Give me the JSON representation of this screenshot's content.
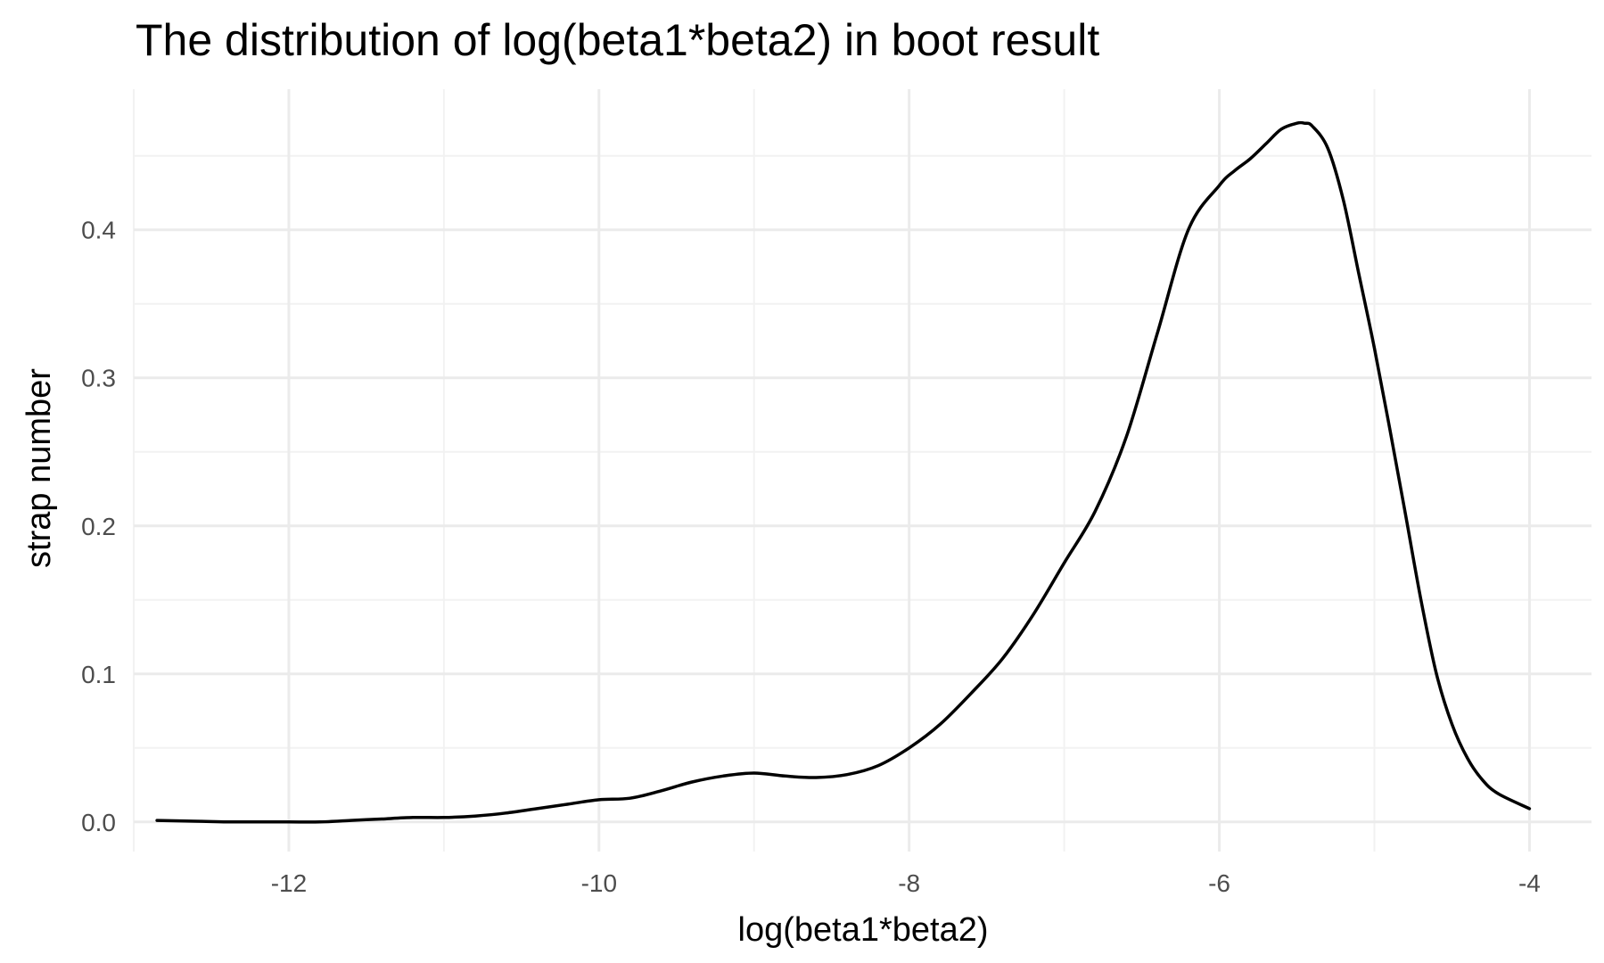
{
  "chart_data": {
    "type": "line",
    "title": "The distribution of log(beta1*beta2) in boot result",
    "xlabel": "log(beta1*beta2)",
    "ylabel": "strap number",
    "xlim": [
      -13.0,
      -3.6
    ],
    "ylim": [
      -0.02,
      0.495
    ],
    "x_ticks": [
      -12,
      -10,
      -8,
      -6,
      -4
    ],
    "x_tick_labels": [
      "-12",
      "-10",
      "-8",
      "-6",
      "-4"
    ],
    "y_ticks": [
      0.0,
      0.1,
      0.2,
      0.3,
      0.4
    ],
    "y_tick_labels": [
      "0.0",
      "0.1",
      "0.2",
      "0.3",
      "0.4"
    ],
    "x_minor_ticks": [
      -13,
      -11,
      -9,
      -7,
      -5
    ],
    "y_minor_ticks": [
      0.05,
      0.15,
      0.25,
      0.35,
      0.45
    ],
    "grid": true,
    "legend": "none",
    "line_color": "#000000",
    "series": [
      {
        "x": [
          -12.85,
          -12.6,
          -12.4,
          -12.2,
          -12.0,
          -11.8,
          -11.6,
          -11.4,
          -11.2,
          -11.0,
          -10.8,
          -10.6,
          -10.4,
          -10.2,
          -10.0,
          -9.8,
          -9.6,
          -9.4,
          -9.2,
          -9.0,
          -8.8,
          -8.6,
          -8.4,
          -8.2,
          -8.0,
          -7.8,
          -7.6,
          -7.4,
          -7.2,
          -7.0,
          -6.8,
          -6.6,
          -6.4,
          -6.2,
          -6.0,
          -5.9,
          -5.8,
          -5.7,
          -5.6,
          -5.5,
          -5.45,
          -5.4,
          -5.3,
          -5.2,
          -5.1,
          -5.0,
          -4.9,
          -4.8,
          -4.7,
          -4.6,
          -4.5,
          -4.4,
          -4.3,
          -4.2,
          -4.0
        ],
        "y": [
          0.001,
          0.0005,
          0.0,
          0.0,
          0.0,
          0.0,
          0.001,
          0.002,
          0.003,
          0.003,
          0.004,
          0.006,
          0.009,
          0.012,
          0.015,
          0.016,
          0.021,
          0.027,
          0.031,
          0.033,
          0.031,
          0.03,
          0.032,
          0.038,
          0.05,
          0.066,
          0.087,
          0.11,
          0.14,
          0.175,
          0.21,
          0.26,
          0.33,
          0.4,
          0.43,
          0.44,
          0.448,
          0.458,
          0.468,
          0.472,
          0.472,
          0.47,
          0.455,
          0.42,
          0.37,
          0.32,
          0.265,
          0.208,
          0.15,
          0.1,
          0.066,
          0.043,
          0.028,
          0.019,
          0.009
        ]
      }
    ]
  }
}
